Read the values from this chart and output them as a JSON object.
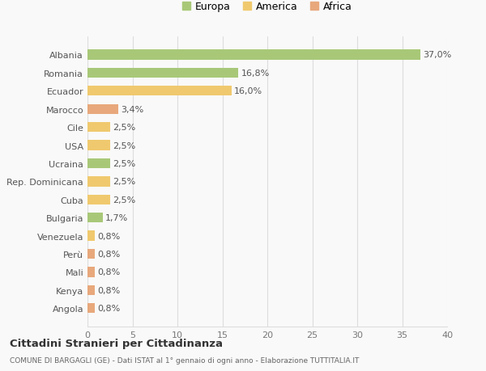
{
  "categories": [
    "Angola",
    "Kenya",
    "Mali",
    "Perù",
    "Venezuela",
    "Bulgaria",
    "Cuba",
    "Rep. Dominicana",
    "Ucraina",
    "USA",
    "Cile",
    "Marocco",
    "Ecuador",
    "Romania",
    "Albania"
  ],
  "values": [
    0.8,
    0.8,
    0.8,
    0.8,
    0.8,
    1.7,
    2.5,
    2.5,
    2.5,
    2.5,
    2.5,
    3.4,
    16.0,
    16.8,
    37.0
  ],
  "labels": [
    "0,8%",
    "0,8%",
    "0,8%",
    "0,8%",
    "0,8%",
    "1,7%",
    "2,5%",
    "2,5%",
    "2,5%",
    "2,5%",
    "2,5%",
    "3,4%",
    "16,0%",
    "16,8%",
    "37,0%"
  ],
  "colors": [
    "#e8a87c",
    "#e8a87c",
    "#e8a87c",
    "#e8a87c",
    "#f0c96e",
    "#a8c878",
    "#f0c96e",
    "#f0c96e",
    "#a8c878",
    "#f0c96e",
    "#f0c96e",
    "#e8a87c",
    "#f0c96e",
    "#a8c878",
    "#a8c878"
  ],
  "legend_labels": [
    "Europa",
    "America",
    "Africa"
  ],
  "legend_colors": [
    "#a8c878",
    "#f0c96e",
    "#e8a87c"
  ],
  "title1": "Cittadini Stranieri per Cittadinanza",
  "title2": "COMUNE DI BARGAGLI (GE) - Dati ISTAT al 1° gennaio di ogni anno - Elaborazione TUTTITALIA.IT",
  "xlim": [
    0,
    40
  ],
  "xticks": [
    0,
    5,
    10,
    15,
    20,
    25,
    30,
    35,
    40
  ],
  "bg_color": "#f9f9f9",
  "bar_height": 0.55,
  "label_fontsize": 8,
  "tick_fontsize": 8,
  "grid_color": "#dddddd"
}
